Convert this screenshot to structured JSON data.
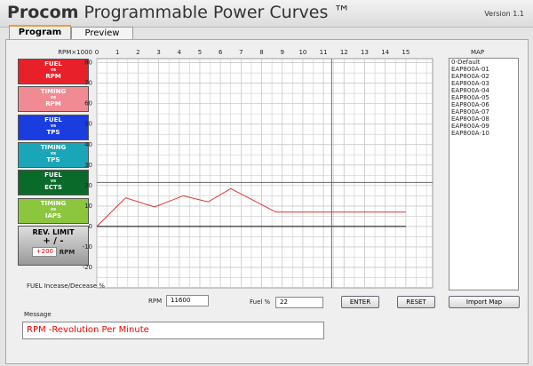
{
  "header": {
    "title_bold": "Procom",
    "title": "Programmable Power Curves ™",
    "version": "Version 1.1"
  },
  "tabs": [
    "Program",
    "Preview"
  ],
  "buttons": [
    {
      "top": "FUEL",
      "mid": "vs",
      "bottom": "RPM",
      "color": "#e8202a"
    },
    {
      "top": "TIMING",
      "mid": "vs",
      "bottom": "RPM",
      "color": "#f08b94"
    },
    {
      "top": "FUEL",
      "mid": "vs",
      "bottom": "TPS",
      "color": "#1a3de0"
    },
    {
      "top": "TIMING",
      "mid": "vs",
      "bottom": "TPS",
      "color": "#1aa6b8"
    },
    {
      "top": "FUEL",
      "mid": "vs",
      "bottom": "ECTS",
      "color": "#0a6a2a"
    },
    {
      "top": "TIMING",
      "mid": "vs",
      "bottom": "IAPS",
      "color": "#8cc63f"
    }
  ],
  "rev_limit": {
    "label": "REV. LIMIT",
    "sign": "+ / -",
    "value": "+200",
    "unit": "RPM"
  },
  "chart_data": {
    "type": "line",
    "x_label": "RPM×1000",
    "y_label": "FUEL Incease/Decease %",
    "xlim": [
      0,
      16.3
    ],
    "ylim": [
      -30,
      82
    ],
    "xticks": [
      0,
      1,
      2,
      3,
      4,
      5,
      6,
      7,
      8,
      9,
      10,
      11,
      12,
      13,
      14,
      15
    ],
    "yticks": [
      -20,
      -10,
      0,
      10,
      20,
      30,
      40,
      50,
      60,
      70,
      80
    ],
    "grid": true,
    "series": [
      {
        "color": "#e03030",
        "x": [
          0,
          1.4,
          2.8,
          4.2,
          5.4,
          6.5,
          8.7,
          15
        ],
        "values": [
          0,
          14,
          9.5,
          15,
          12,
          18.5,
          7,
          7
        ]
      }
    ],
    "crosshair": {
      "x": 11.4,
      "y": 21.5
    }
  },
  "map": {
    "title": "MAP",
    "items": [
      "0-Default",
      "EAP800A-01",
      "EAP800A-02",
      "EAP800A-03",
      "EAP800A-04",
      "EAP800A-05",
      "EAP800A-06",
      "EAP800A-07",
      "EAP800A-08",
      "EAP800A-09",
      "EAP800A-10"
    ],
    "button": "Import Map"
  },
  "controls": {
    "rpm_label": "RPM",
    "rpm_value": "11600",
    "fuel_label": "Fuel %",
    "fuel_value": "22",
    "enter": "ENTER",
    "reset": "RESET"
  },
  "message": {
    "label": "Message",
    "text": "RPM -Revolution Per Minute"
  }
}
